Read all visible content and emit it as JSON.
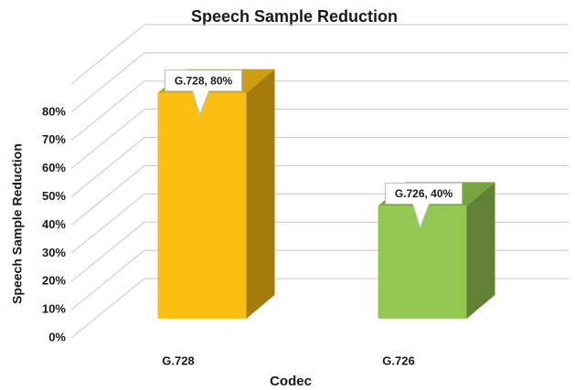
{
  "chart_data": {
    "type": "bar3d",
    "title": "Speech Sample Reduction",
    "x_label": "Codec",
    "y_label": "Speech Sample Reduction",
    "categories": [
      "G.728",
      "G.726"
    ],
    "values": [
      80,
      40
    ],
    "value_labels": [
      "G.728, 80%",
      "G.726, 40%"
    ],
    "colors": [
      "#fbbf12",
      "#92c851"
    ],
    "ylim": [
      0,
      90
    ],
    "yticks": [
      {
        "value": 0,
        "label": "0%"
      },
      {
        "value": 10,
        "label": "10%"
      },
      {
        "value": 20,
        "label": "20%"
      },
      {
        "value": 30,
        "label": "30%"
      },
      {
        "value": 40,
        "label": "40%"
      },
      {
        "value": 50,
        "label": "50%"
      },
      {
        "value": 60,
        "label": "60%"
      },
      {
        "value": 70,
        "label": "70%"
      },
      {
        "value": 80,
        "label": "80%"
      }
    ],
    "grid": true
  }
}
